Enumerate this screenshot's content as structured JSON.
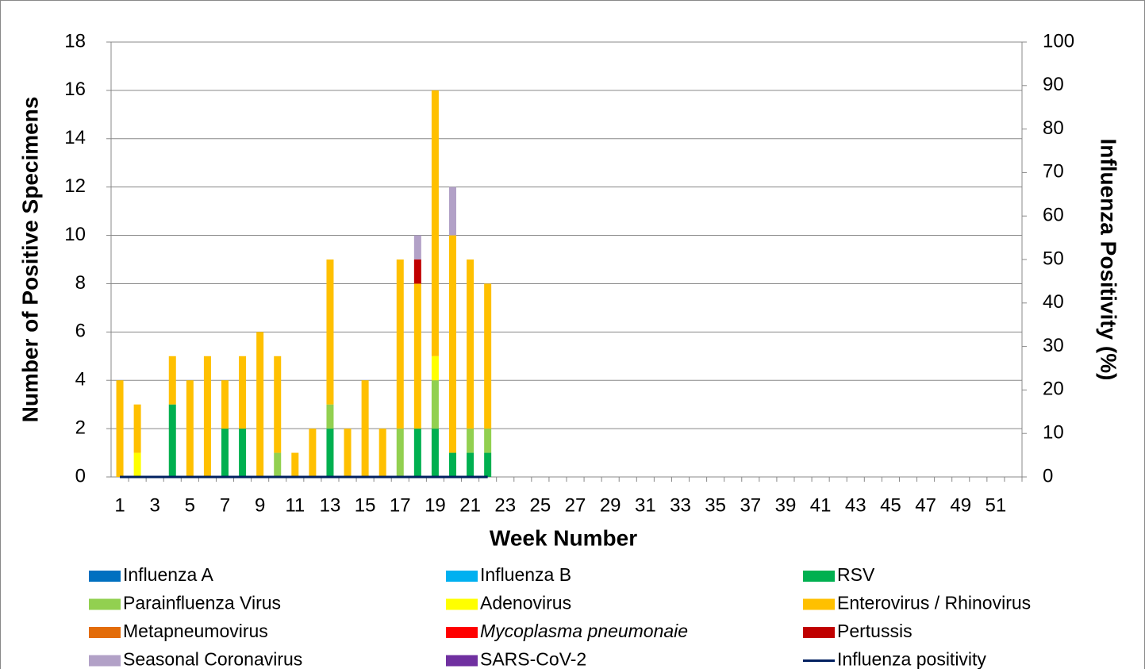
{
  "chart_data": {
    "type": "bar",
    "stacked": true,
    "x_label": "Week Number",
    "y_label": "Number of Positive Specimens",
    "y2_label": "Influenza Positivity (%)",
    "categories": [
      1,
      null,
      3,
      null,
      5,
      null,
      7,
      null,
      9,
      null,
      11,
      null,
      13,
      null,
      15,
      null,
      17,
      null,
      19,
      null,
      21,
      null,
      23,
      null,
      25,
      null,
      27,
      null,
      29,
      null,
      31,
      null,
      33,
      null,
      35,
      null,
      37,
      null,
      39,
      null,
      41,
      null,
      43,
      null,
      45,
      null,
      47,
      null,
      49,
      null,
      51,
      null
    ],
    "ylim": [
      0,
      18
    ],
    "yticks": [
      0,
      2,
      4,
      6,
      8,
      10,
      12,
      14,
      16,
      18
    ],
    "y2lim": [
      0,
      100
    ],
    "y2ticks": [
      0,
      10,
      20,
      30,
      40,
      50,
      60,
      70,
      80,
      90,
      100
    ],
    "grid": true,
    "series": [
      {
        "name": "Influenza A",
        "color": "#0070c0",
        "values": [
          0,
          0,
          0,
          0,
          0,
          0,
          0,
          0,
          0,
          0,
          0,
          0,
          0,
          0,
          0,
          0,
          0,
          0,
          0,
          0,
          0,
          0,
          null,
          null,
          null,
          null,
          null,
          null,
          null,
          null,
          null,
          null,
          null,
          null,
          null,
          null,
          null,
          null,
          null,
          null,
          null,
          null,
          null,
          null,
          null,
          null,
          null,
          null,
          null,
          null,
          null,
          null
        ]
      },
      {
        "name": "Influenza B",
        "color": "#00b0f0",
        "values": [
          0,
          0,
          0,
          0,
          0,
          0,
          0,
          0,
          0,
          0,
          0,
          0,
          0,
          0,
          0,
          0,
          0,
          0,
          0,
          0,
          0,
          0,
          null,
          null,
          null,
          null,
          null,
          null,
          null,
          null,
          null,
          null,
          null,
          null,
          null,
          null,
          null,
          null,
          null,
          null,
          null,
          null,
          null,
          null,
          null,
          null,
          null,
          null,
          null,
          null,
          null,
          null
        ]
      },
      {
        "name": "RSV",
        "color": "#00b050",
        "values": [
          0,
          0,
          0,
          3,
          0,
          0,
          2,
          2,
          0,
          0,
          0,
          0,
          2,
          0,
          0,
          0,
          0,
          2,
          2,
          1,
          1,
          1,
          null,
          null,
          null,
          null,
          null,
          null,
          null,
          null,
          null,
          null,
          null,
          null,
          null,
          null,
          null,
          null,
          null,
          null,
          null,
          null,
          null,
          null,
          null,
          null,
          null,
          null,
          null,
          null,
          null,
          null
        ]
      },
      {
        "name": "Parainfluenza Virus",
        "color": "#92d050",
        "values": [
          0,
          0,
          0,
          0,
          0,
          0,
          0,
          0,
          0,
          1,
          0,
          0,
          1,
          0,
          0,
          0,
          2,
          0,
          2,
          0,
          1,
          1,
          null,
          null,
          null,
          null,
          null,
          null,
          null,
          null,
          null,
          null,
          null,
          null,
          null,
          null,
          null,
          null,
          null,
          null,
          null,
          null,
          null,
          null,
          null,
          null,
          null,
          null,
          null,
          null,
          null,
          null
        ]
      },
      {
        "name": "Adenovirus",
        "color": "#ffff00",
        "values": [
          0,
          1,
          0,
          0,
          0,
          0,
          0,
          0,
          0,
          0,
          0,
          0,
          0,
          0,
          0,
          0,
          0,
          0,
          1,
          0,
          0,
          0,
          null,
          null,
          null,
          null,
          null,
          null,
          null,
          null,
          null,
          null,
          null,
          null,
          null,
          null,
          null,
          null,
          null,
          null,
          null,
          null,
          null,
          null,
          null,
          null,
          null,
          null,
          null,
          null,
          null,
          null
        ]
      },
      {
        "name": "Enterovirus / Rhinovirus",
        "color": "#ffc000",
        "values": [
          4,
          2,
          0,
          2,
          4,
          5,
          2,
          3,
          6,
          4,
          1,
          2,
          6,
          2,
          4,
          2,
          7,
          6,
          11,
          9,
          7,
          6,
          null,
          null,
          null,
          null,
          null,
          null,
          null,
          null,
          null,
          null,
          null,
          null,
          null,
          null,
          null,
          null,
          null,
          null,
          null,
          null,
          null,
          null,
          null,
          null,
          null,
          null,
          null,
          null,
          null,
          null
        ]
      },
      {
        "name": "Metapneumovirus",
        "color": "#e36c09",
        "values": [
          0,
          0,
          0,
          0,
          0,
          0,
          0,
          0,
          0,
          0,
          0,
          0,
          0,
          0,
          0,
          0,
          0,
          0,
          0,
          0,
          0,
          0,
          null,
          null,
          null,
          null,
          null,
          null,
          null,
          null,
          null,
          null,
          null,
          null,
          null,
          null,
          null,
          null,
          null,
          null,
          null,
          null,
          null,
          null,
          null,
          null,
          null,
          null,
          null,
          null,
          null,
          null
        ]
      },
      {
        "name": "Mycoplasma pneumonaie",
        "italic": true,
        "color": "#ff0000",
        "values": [
          0,
          0,
          0,
          0,
          0,
          0,
          0,
          0,
          0,
          0,
          0,
          0,
          0,
          0,
          0,
          0,
          0,
          0,
          0,
          0,
          0,
          0,
          null,
          null,
          null,
          null,
          null,
          null,
          null,
          null,
          null,
          null,
          null,
          null,
          null,
          null,
          null,
          null,
          null,
          null,
          null,
          null,
          null,
          null,
          null,
          null,
          null,
          null,
          null,
          null,
          null,
          null
        ]
      },
      {
        "name": "Pertussis",
        "color": "#c00000",
        "values": [
          0,
          0,
          0,
          0,
          0,
          0,
          0,
          0,
          0,
          0,
          0,
          0,
          0,
          0,
          0,
          0,
          0,
          1,
          0,
          0,
          0,
          0,
          null,
          null,
          null,
          null,
          null,
          null,
          null,
          null,
          null,
          null,
          null,
          null,
          null,
          null,
          null,
          null,
          null,
          null,
          null,
          null,
          null,
          null,
          null,
          null,
          null,
          null,
          null,
          null,
          null,
          null
        ]
      },
      {
        "name": "Seasonal Coronavirus",
        "color": "#b2a1c7",
        "values": [
          0,
          0,
          0,
          0,
          0,
          0,
          0,
          0,
          0,
          0,
          0,
          0,
          0,
          0,
          0,
          0,
          0,
          1,
          0,
          2,
          0,
          0,
          null,
          null,
          null,
          null,
          null,
          null,
          null,
          null,
          null,
          null,
          null,
          null,
          null,
          null,
          null,
          null,
          null,
          null,
          null,
          null,
          null,
          null,
          null,
          null,
          null,
          null,
          null,
          null,
          null,
          null
        ]
      },
      {
        "name": "SARS-CoV-2",
        "color": "#7030a0",
        "values": [
          0,
          0,
          0,
          0,
          0,
          0,
          0,
          0,
          0,
          0,
          0,
          0,
          0,
          0,
          0,
          0,
          0,
          0,
          0,
          0,
          0,
          0,
          null,
          null,
          null,
          null,
          null,
          null,
          null,
          null,
          null,
          null,
          null,
          null,
          null,
          null,
          null,
          null,
          null,
          null,
          null,
          null,
          null,
          null,
          null,
          null,
          null,
          null,
          null,
          null,
          null,
          null
        ]
      },
      {
        "name": "Influenza positivity",
        "type": "line",
        "axis": "y2",
        "color": "#002060",
        "values": [
          0,
          0,
          0,
          0,
          0,
          0,
          0,
          0,
          0,
          0,
          0,
          0,
          0,
          0,
          0,
          0,
          0,
          0,
          0,
          0,
          0,
          0,
          null,
          null,
          null,
          null,
          null,
          null,
          null,
          null,
          null,
          null,
          null,
          null,
          null,
          null,
          null,
          null,
          null,
          null,
          null,
          null,
          null,
          null,
          null,
          null,
          null,
          null,
          null,
          null,
          null,
          null
        ]
      }
    ]
  }
}
